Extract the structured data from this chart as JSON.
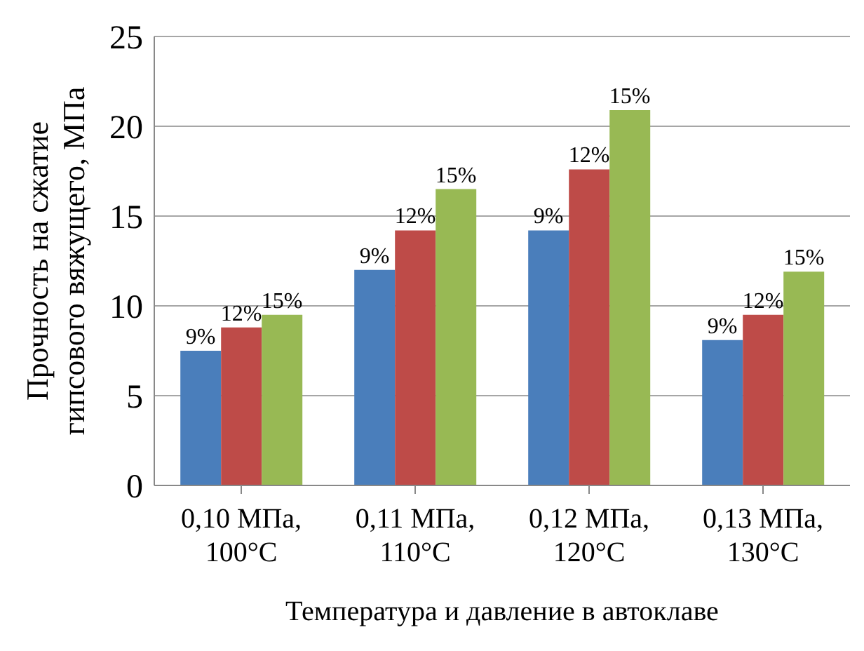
{
  "chart_data": {
    "type": "bar",
    "xlabel": "Температура и давление в автоклаве",
    "ylabel": "Прочность на сжатие\nгипсового вяжущего, МПа",
    "categories": [
      "0,10 МПа,\n100°C",
      "0,11 МПа,\n110°C",
      "0,12 МПа,\n120°C",
      "0,13 МПа,\n130°C"
    ],
    "series": [
      {
        "name": "9%",
        "color": "#4a7ebb",
        "values": [
          7.5,
          12,
          14.2,
          8.1
        ]
      },
      {
        "name": "12%",
        "color": "#be4b48",
        "values": [
          8.8,
          14.2,
          17.6,
          9.5
        ]
      },
      {
        "name": "15%",
        "color": "#98b954",
        "values": [
          9.5,
          16.5,
          20.9,
          11.9
        ]
      }
    ],
    "ylim": [
      0,
      25
    ],
    "yticks": [
      0,
      5,
      10,
      15,
      20,
      25
    ],
    "grid": "y",
    "legend": false
  }
}
